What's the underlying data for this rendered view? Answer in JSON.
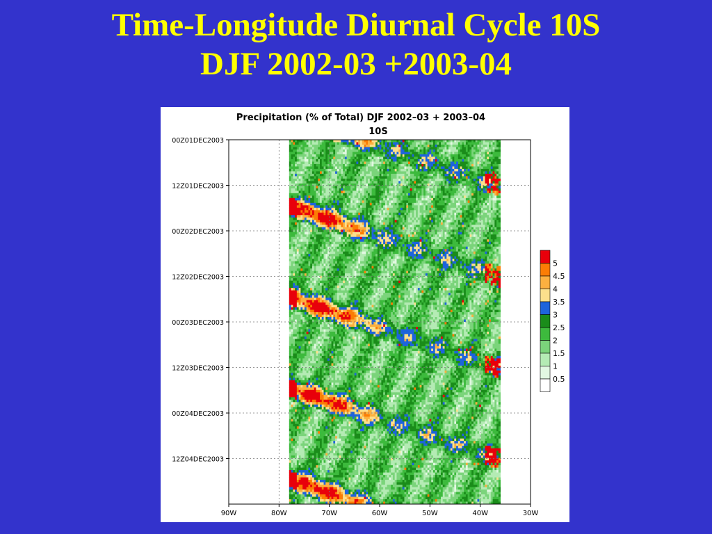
{
  "slide": {
    "title_line1": "Time-Longitude Diurnal Cycle 10S",
    "title_line2": "DJF 2002-03 +2003-04"
  },
  "colors": {
    "slide_background": "#3333cc",
    "title_color": "#ffff00",
    "panel_background": "#ffffff"
  },
  "chart_data": {
    "type": "heatmap",
    "title": "Precipitation (% of Total) DJF 2002–03 + 2003–04",
    "subtitle": "10S",
    "xlabel": "",
    "ylabel": "",
    "x_ticks": [
      "90W",
      "80W",
      "70W",
      "60W",
      "50W",
      "40W",
      "30W"
    ],
    "x_range": [
      "90W",
      "30W"
    ],
    "y_ticks": [
      "00Z01DEC2003",
      "12Z01DEC2003",
      "00Z02DEC2003",
      "12Z02DEC2003",
      "00Z03DEC2003",
      "12Z03DEC2003",
      "00Z04DEC2003",
      "12Z04DEC2003"
    ],
    "y_range": [
      "00Z01DEC2003",
      "00Z05DEC2003"
    ],
    "grid": true,
    "data_extent_lon": [
      "78W",
      "36W"
    ],
    "colorbar": {
      "placement": "right",
      "labels": [
        "5",
        "4.5",
        "4",
        "3.5",
        "3",
        "2.5",
        "2",
        "1.5",
        "1",
        "0.5"
      ],
      "colors": [
        "#e8000b",
        "#fb7d05",
        "#fcb040",
        "#fce08c",
        "#1e64dc",
        "#1a8c1a",
        "#3dba3d",
        "#7bd47b",
        "#b4ebb4",
        "#e2f8e2",
        "#ffffff"
      ]
    },
    "field_description": "Diurnal precipitation percent of total; recurring daily bands with maxima near 76-70W in the afternoon, drifting westward with time; light green background 1-2.5%"
  }
}
